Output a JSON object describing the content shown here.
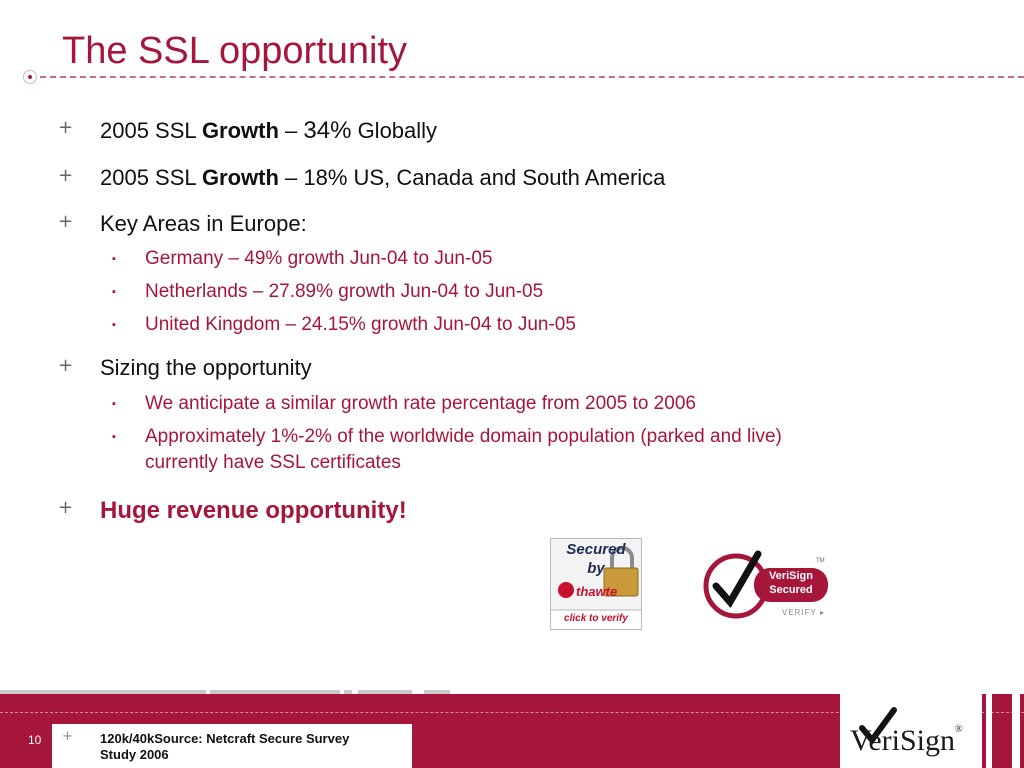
{
  "slide": {
    "title": "The SSL opportunity",
    "page_number": "10"
  },
  "bullets": {
    "b1": {
      "pre": "2005 SSL ",
      "bold": "Growth",
      "mid": " – ",
      "big": "34%",
      "post": " Globally"
    },
    "b2": {
      "pre": "2005 SSL ",
      "bold": "Growth",
      "post": " – 18% US, Canada and South America"
    },
    "b3": {
      "text": "Key Areas in Europe:"
    },
    "b3_sub": [
      "Germany – 49% growth Jun-04 to Jun-05",
      "Netherlands – 27.89% growth Jun-04 to Jun-05",
      "United Kingdom – 24.15% growth Jun-04 to Jun-05"
    ],
    "b4": {
      "text": "Sizing the opportunity"
    },
    "b4_sub": [
      "We anticipate a similar growth rate percentage from 2005 to 2006",
      "Approximately 1%-2% of the worldwide domain population (parked and live)",
      "currently have SSL certificates"
    ],
    "b5": {
      "text": "Huge revenue opportunity!"
    },
    "plus_glyph": "+",
    "square_glyph": "▪"
  },
  "badges": {
    "thawte": {
      "line1": "Secured",
      "line2": "by",
      "brand": "thawte",
      "cta": "click to verify"
    },
    "verisign": {
      "line1": "VeriSign",
      "line2": "Secured",
      "cta": "VERIFY ▸",
      "tm": "TM"
    }
  },
  "footer": {
    "source_line1": "120k/40kSource: Netcraft Secure Survey",
    "source_line2": "Study 2006",
    "plus": "+",
    "logo_text": "VeriSign",
    "logo_reg": "®"
  },
  "colors": {
    "accent": "#a6163a",
    "text": "#111111"
  }
}
